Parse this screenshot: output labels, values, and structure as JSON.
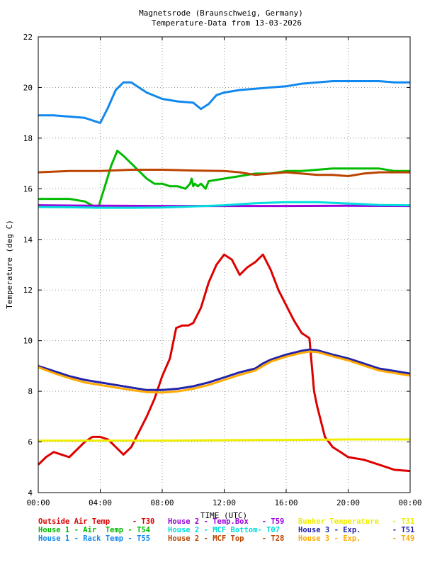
{
  "chart_data": {
    "type": "line",
    "title": "Magnetsrode (Braunschweig, Germany)",
    "subtitle": "Temperature-Data from 13-03-2026",
    "xlabel": "TIME (UTC)",
    "ylabel": "Temperature (deg C)",
    "xlim": [
      0,
      24
    ],
    "ylim": [
      4,
      22
    ],
    "grid": true,
    "x_ticks": [
      {
        "value": 0,
        "label": "00:00"
      },
      {
        "value": 4,
        "label": "04:00"
      },
      {
        "value": 8,
        "label": "08:00"
      },
      {
        "value": 12,
        "label": "12:00"
      },
      {
        "value": 16,
        "label": "16:00"
      },
      {
        "value": 20,
        "label": "20:00"
      },
      {
        "value": 24,
        "label": "00:00"
      }
    ],
    "y_ticks": [
      {
        "value": 4,
        "label": "4"
      },
      {
        "value": 6,
        "label": "6"
      },
      {
        "value": 8,
        "label": "8"
      },
      {
        "value": 10,
        "label": "10"
      },
      {
        "value": 12,
        "label": "12"
      },
      {
        "value": 14,
        "label": "14"
      },
      {
        "value": 16,
        "label": "16"
      },
      {
        "value": 18,
        "label": "18"
      },
      {
        "value": 20,
        "label": "20"
      },
      {
        "value": 22,
        "label": "22"
      }
    ],
    "legend_position": "bottom",
    "series": [
      {
        "name": "Outside Air Temp     - T30",
        "color": "#dd0000",
        "x": [
          0,
          0.5,
          1,
          1.5,
          2,
          2.5,
          3,
          3.5,
          4,
          4.5,
          5,
          5.5,
          6,
          6.5,
          7,
          7.5,
          8,
          8.5,
          8.9,
          9.3,
          9.7,
          10,
          10.5,
          11,
          11.5,
          12,
          12.5,
          13,
          13.5,
          14,
          14.5,
          15,
          15.5,
          16,
          16.5,
          17,
          17.5,
          17.8,
          18,
          18.5,
          19,
          19.5,
          20,
          21,
          22,
          23,
          24
        ],
        "y": [
          5.1,
          5.4,
          5.6,
          5.5,
          5.4,
          5.7,
          6.0,
          6.2,
          6.2,
          6.1,
          5.8,
          5.5,
          5.8,
          6.4,
          7.0,
          7.7,
          8.6,
          9.3,
          10.5,
          10.6,
          10.6,
          10.7,
          11.3,
          12.3,
          13.0,
          13.4,
          13.2,
          12.6,
          12.9,
          13.1,
          13.4,
          12.8,
          12.0,
          11.4,
          10.8,
          10.3,
          10.1,
          8.0,
          7.4,
          6.2,
          5.8,
          5.6,
          5.4,
          5.3,
          5.1,
          4.9,
          4.85
        ]
      },
      {
        "name": "House 1 - Air  Temp - T54",
        "color": "#00bb00",
        "x": [
          0,
          1,
          2,
          3,
          3.6,
          3.9,
          4.3,
          4.7,
          5.1,
          5.5,
          6,
          6.5,
          7,
          7.5,
          8,
          8.5,
          9,
          9.5,
          9.8,
          9.9,
          10.0,
          10.1,
          10.3,
          10.5,
          10.8,
          11,
          12,
          13,
          14,
          15,
          16,
          17,
          18,
          19,
          20,
          21,
          22,
          23,
          24
        ],
        "y": [
          15.6,
          15.6,
          15.6,
          15.5,
          15.3,
          15.3,
          16.1,
          16.9,
          17.5,
          17.3,
          17.0,
          16.7,
          16.4,
          16.2,
          16.2,
          16.1,
          16.1,
          16.0,
          16.2,
          16.4,
          16.1,
          16.2,
          16.1,
          16.2,
          16.0,
          16.3,
          16.4,
          16.5,
          16.6,
          16.6,
          16.7,
          16.7,
          16.75,
          16.8,
          16.8,
          16.8,
          16.8,
          16.7,
          16.7
        ]
      },
      {
        "name": "House 1 - Rack Temp - T55",
        "color": "#1188ee",
        "x": [
          0,
          1,
          2,
          3,
          3.5,
          4,
          4.5,
          5,
          5.5,
          6,
          7,
          8,
          9,
          10,
          10.5,
          11,
          11.5,
          12,
          13,
          14,
          15,
          16,
          17,
          18,
          19,
          20,
          21,
          22,
          23,
          24
        ],
        "y": [
          18.9,
          18.9,
          18.85,
          18.8,
          18.7,
          18.6,
          19.2,
          19.9,
          20.2,
          20.2,
          19.8,
          19.55,
          19.45,
          19.4,
          19.15,
          19.35,
          19.7,
          19.8,
          19.9,
          19.95,
          20.0,
          20.05,
          20.15,
          20.2,
          20.25,
          20.25,
          20.25,
          20.25,
          20.2,
          20.2
        ]
      },
      {
        "name": "House 2 - Temp.Box   - T59",
        "color": "#9900dd",
        "x": [
          0,
          4,
          8,
          12,
          16,
          20,
          24
        ],
        "y": [
          15.35,
          15.33,
          15.32,
          15.32,
          15.32,
          15.33,
          15.32
        ]
      },
      {
        "name": "House 2 - MCF Bottom- T07",
        "color": "#00dddd",
        "x": [
          0,
          2,
          4,
          6,
          8,
          10,
          12,
          14,
          16,
          18,
          20,
          22,
          24
        ],
        "y": [
          15.28,
          15.27,
          15.25,
          15.25,
          15.26,
          15.3,
          15.35,
          15.43,
          15.47,
          15.47,
          15.42,
          15.36,
          15.35
        ]
      },
      {
        "name": "House 2 - MCF Top    - T28",
        "color": "#bb4400",
        "x": [
          0,
          2,
          4,
          6,
          8,
          10,
          12,
          13,
          14,
          15,
          16,
          17,
          18,
          19,
          20,
          21,
          22,
          23,
          24
        ],
        "y": [
          16.65,
          16.7,
          16.7,
          16.75,
          16.75,
          16.72,
          16.7,
          16.65,
          16.55,
          16.6,
          16.65,
          16.6,
          16.55,
          16.55,
          16.5,
          16.6,
          16.65,
          16.65,
          16.65
        ]
      },
      {
        "name": "Bunker Temperature   - T31",
        "color": "#eeee00",
        "x": [
          0,
          4,
          8,
          12,
          16,
          20,
          24
        ],
        "y": [
          6.05,
          6.05,
          6.05,
          6.07,
          6.08,
          6.1,
          6.1
        ]
      },
      {
        "name": "House 3 - Exp.       - T51",
        "color": "#2222aa",
        "x": [
          0,
          1,
          2,
          3,
          4,
          5,
          6,
          7,
          8,
          9,
          10,
          11,
          12,
          13,
          14,
          14.5,
          15,
          16,
          17,
          17.5,
          18,
          19,
          20,
          21,
          22,
          23,
          24
        ],
        "y": [
          9.0,
          8.8,
          8.6,
          8.45,
          8.35,
          8.25,
          8.15,
          8.05,
          8.05,
          8.1,
          8.2,
          8.35,
          8.55,
          8.75,
          8.9,
          9.1,
          9.25,
          9.45,
          9.6,
          9.65,
          9.62,
          9.45,
          9.3,
          9.1,
          8.9,
          8.8,
          8.7
        ]
      },
      {
        "name": "House 3 - Exp.       - T49",
        "color": "#ffaa00",
        "x": [
          0,
          1,
          2,
          3,
          4,
          5,
          6,
          7,
          8,
          9,
          10,
          11,
          12,
          13,
          14,
          14.5,
          15,
          16,
          17,
          17.5,
          18,
          19,
          20,
          21,
          22,
          23,
          24
        ],
        "y": [
          8.95,
          8.72,
          8.52,
          8.35,
          8.25,
          8.15,
          8.05,
          7.97,
          7.95,
          8.0,
          8.1,
          8.25,
          8.45,
          8.65,
          8.82,
          9.0,
          9.17,
          9.37,
          9.52,
          9.57,
          9.55,
          9.38,
          9.22,
          9.02,
          8.82,
          8.72,
          8.62
        ]
      }
    ]
  }
}
